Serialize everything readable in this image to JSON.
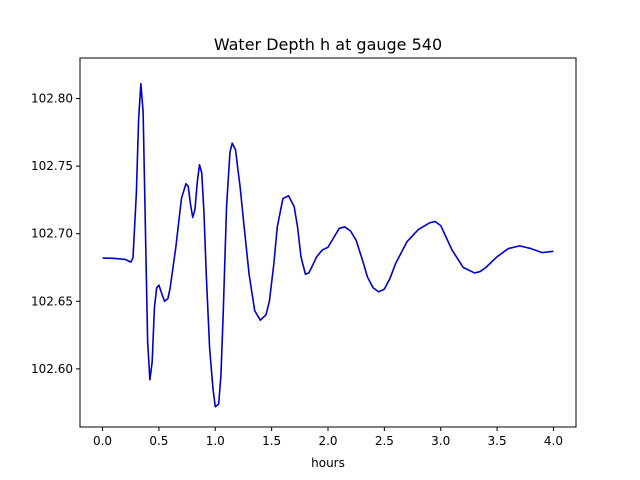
{
  "chart_data": {
    "type": "line",
    "title": "Water Depth h at gauge 540",
    "xlabel": "hours",
    "ylabel": "",
    "xlim": [
      -0.2,
      4.2
    ],
    "ylim": [
      102.557,
      102.83
    ],
    "xticks": [
      0.0,
      0.5,
      1.0,
      1.5,
      2.0,
      2.5,
      3.0,
      3.5,
      4.0
    ],
    "xtick_labels": [
      "0.0",
      "0.5",
      "1.0",
      "1.5",
      "2.0",
      "2.5",
      "3.0",
      "3.5",
      "4.0"
    ],
    "yticks": [
      102.6,
      102.65,
      102.7,
      102.75,
      102.8
    ],
    "ytick_labels": [
      "102.60",
      "102.65",
      "102.70",
      "102.75",
      "102.80"
    ],
    "grid": false,
    "legend": "none",
    "series": [
      {
        "name": "",
        "color": "#0000cc",
        "x": [
          0.0,
          0.1,
          0.2,
          0.25,
          0.27,
          0.3,
          0.32,
          0.34,
          0.36,
          0.38,
          0.4,
          0.42,
          0.44,
          0.46,
          0.48,
          0.5,
          0.52,
          0.55,
          0.58,
          0.6,
          0.65,
          0.7,
          0.74,
          0.76,
          0.78,
          0.8,
          0.82,
          0.84,
          0.86,
          0.88,
          0.9,
          0.92,
          0.95,
          0.98,
          1.0,
          1.03,
          1.05,
          1.07,
          1.1,
          1.13,
          1.15,
          1.18,
          1.2,
          1.22,
          1.25,
          1.3,
          1.35,
          1.4,
          1.45,
          1.48,
          1.52,
          1.55,
          1.6,
          1.65,
          1.7,
          1.73,
          1.76,
          1.8,
          1.83,
          1.86,
          1.9,
          1.95,
          2.0,
          2.05,
          2.1,
          2.15,
          2.2,
          2.25,
          2.3,
          2.35,
          2.4,
          2.45,
          2.5,
          2.55,
          2.6,
          2.7,
          2.8,
          2.9,
          2.95,
          3.0,
          3.05,
          3.1,
          3.2,
          3.3,
          3.35,
          3.4,
          3.5,
          3.6,
          3.7,
          3.8,
          3.9,
          4.0
        ],
        "y": [
          102.682,
          102.6818,
          102.681,
          102.679,
          102.682,
          102.73,
          102.785,
          102.811,
          102.79,
          102.705,
          102.62,
          102.592,
          102.605,
          102.645,
          102.66,
          102.662,
          102.657,
          102.65,
          102.652,
          102.66,
          102.69,
          102.726,
          102.737,
          102.735,
          102.722,
          102.712,
          102.718,
          102.738,
          102.751,
          102.745,
          102.715,
          102.67,
          102.615,
          102.585,
          102.572,
          102.574,
          102.595,
          102.64,
          102.72,
          102.76,
          102.767,
          102.762,
          102.748,
          102.735,
          102.71,
          102.67,
          102.643,
          102.636,
          102.64,
          102.65,
          102.678,
          102.705,
          102.726,
          102.728,
          102.72,
          102.705,
          102.683,
          102.67,
          102.671,
          102.676,
          102.683,
          102.688,
          102.69,
          102.697,
          102.704,
          102.705,
          102.702,
          102.695,
          102.682,
          102.668,
          102.66,
          102.657,
          102.659,
          102.667,
          102.678,
          102.694,
          102.703,
          102.708,
          102.709,
          102.706,
          102.697,
          102.688,
          102.675,
          102.671,
          102.672,
          102.675,
          102.683,
          102.689,
          102.691,
          102.689,
          102.686,
          102.687
        ]
      }
    ]
  }
}
